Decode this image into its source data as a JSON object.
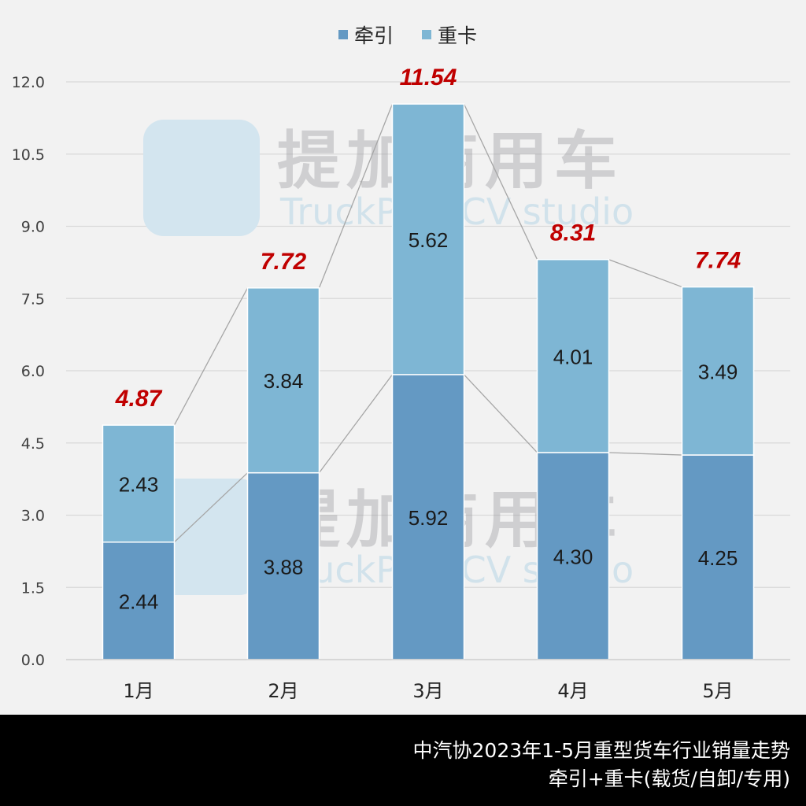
{
  "legend": [
    {
      "label": "牵引",
      "color": "#6499c3"
    },
    {
      "label": "重卡",
      "color": "#7eb6d4"
    }
  ],
  "watermark": {
    "cn": "提加商用车",
    "en": "TruckPlus CV studio"
  },
  "footer": {
    "line1": "中汽协2023年1-5月重型货车行业销量走势",
    "line2": "牵引+重卡(载货/自卸/专用)"
  },
  "chart_data": {
    "type": "bar",
    "stacked": true,
    "title": "中汽协2023年1-5月重型货车行业销量走势",
    "subtitle": "牵引+重卡(载货/自卸/专用)",
    "categories": [
      "1月",
      "2月",
      "3月",
      "4月",
      "5月"
    ],
    "series": [
      {
        "name": "牵引",
        "color": "#6499c3",
        "values": [
          2.44,
          3.88,
          5.92,
          4.3,
          4.25
        ],
        "labels": [
          "2.44",
          "3.88",
          "5.92",
          "4.30",
          "4.25"
        ]
      },
      {
        "name": "重卡",
        "color": "#7eb6d4",
        "values": [
          2.43,
          3.84,
          5.62,
          4.01,
          3.49
        ],
        "labels": [
          "2.43",
          "3.84",
          "5.62",
          "4.01",
          "3.49"
        ]
      }
    ],
    "totals": [
      4.87,
      7.72,
      11.54,
      8.31,
      7.74
    ],
    "total_labels": [
      "4.87",
      "7.72",
      "11.54",
      "8.31",
      "7.74"
    ],
    "total_label_color": "#c00000",
    "series_lines": true,
    "xlabel": "",
    "ylabel": "",
    "ylim": [
      0,
      12
    ],
    "yticks": [
      "0.0",
      "1.5",
      "3.0",
      "4.5",
      "6.0",
      "7.5",
      "9.0",
      "10.5",
      "12.0"
    ],
    "grid": true,
    "legend_position": "top"
  }
}
